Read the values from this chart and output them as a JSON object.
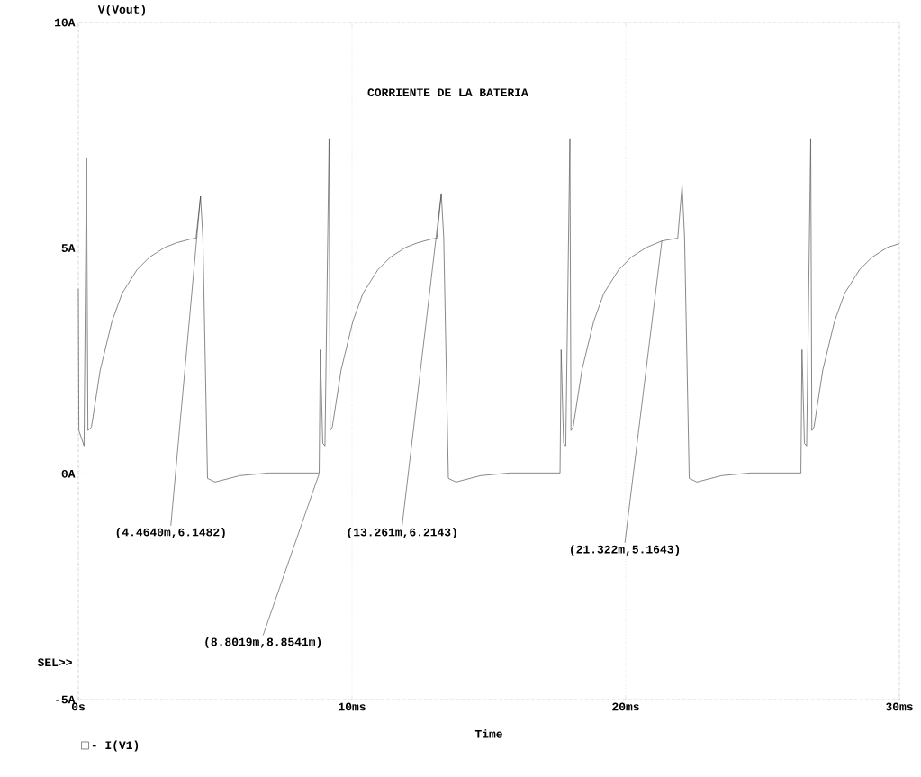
{
  "chart_data": {
    "type": "line",
    "title": "CORRIENTE DE LA BATERIA",
    "xlabel": "Time",
    "annotations": [
      {
        "text": "(4.4640m,6.1482)",
        "x": 4.464,
        "y": 6.1482
      },
      {
        "text": "(8.8019m,8.8541m)",
        "x": 8.8019,
        "y": 0.0088541
      },
      {
        "text": "(13.261m,6.2143)",
        "x": 13.261,
        "y": 6.2143
      },
      {
        "text": "(21.322m,5.1643)",
        "x": 21.322,
        "y": 5.1643
      },
      "SEL>>",
      "V(Vout)"
    ],
    "series": [
      {
        "name": "- I(V1)",
        "color": "#555555",
        "x": [
          0,
          0.02,
          0.21,
          0.3,
          0.35,
          0.48,
          0.8,
          1.23,
          1.6,
          2.14,
          2.6,
          3.17,
          3.6,
          4.09,
          4.3,
          4.464,
          4.55,
          4.72,
          5.0,
          5.9,
          6.97,
          8.8,
          8.84,
          8.93,
          9.01,
          9.16,
          9.2,
          9.28,
          9.6,
          10.03,
          10.4,
          10.94,
          11.4,
          11.97,
          12.4,
          12.89,
          13.1,
          13.261,
          13.35,
          13.52,
          13.8,
          14.7,
          15.77,
          17.6,
          17.64,
          17.73,
          17.81,
          17.96,
          18.0,
          18.08,
          18.4,
          18.83,
          19.2,
          19.74,
          20.2,
          20.77,
          21.322,
          21.69,
          21.9,
          22.06,
          22.15,
          22.32,
          22.6,
          23.5,
          24.57,
          26.4,
          26.44,
          26.53,
          26.61,
          26.76,
          26.8,
          26.88,
          27.2,
          27.63,
          28.0,
          28.54,
          29.0,
          29.57,
          30
        ],
        "values": [
          4.1,
          0.96,
          0.62,
          7.0,
          0.96,
          1.04,
          2.3,
          3.38,
          4.0,
          4.52,
          4.8,
          5.02,
          5.12,
          5.2,
          5.22,
          6.15,
          5.24,
          -0.1,
          -0.18,
          -0.04,
          0.02,
          0.02,
          2.75,
          0.68,
          0.62,
          7.43,
          0.96,
          1.04,
          2.3,
          3.38,
          4.0,
          4.52,
          4.8,
          5.02,
          5.12,
          5.2,
          5.22,
          6.21,
          5.24,
          -0.1,
          -0.18,
          -0.04,
          0.02,
          0.02,
          2.75,
          0.68,
          0.62,
          7.43,
          0.96,
          1.04,
          2.3,
          3.38,
          4.0,
          4.52,
          4.8,
          5.02,
          5.16,
          5.2,
          5.22,
          6.4,
          5.24,
          -0.1,
          -0.18,
          -0.04,
          0.02,
          0.02,
          2.75,
          0.68,
          0.62,
          7.43,
          0.96,
          1.04,
          2.3,
          3.38,
          4.0,
          4.52,
          4.8,
          5.02,
          5.1
        ]
      }
    ],
    "xlim": [
      0,
      30
    ],
    "ylim": [
      -5,
      10
    ],
    "xticks": [
      {
        "value": 0,
        "label": "0s"
      },
      {
        "value": 10,
        "label": "10ms"
      },
      {
        "value": 20,
        "label": "20ms"
      },
      {
        "value": 30,
        "label": "30ms"
      }
    ],
    "yticks": [
      {
        "value": -5,
        "label": "-5A"
      },
      {
        "value": 0,
        "label": "0A"
      },
      {
        "value": 5,
        "label": "5A"
      },
      {
        "value": 10,
        "label": "10A"
      }
    ],
    "grid": true,
    "legend": "bottom left",
    "marker": "none",
    "line_style": "solid"
  }
}
